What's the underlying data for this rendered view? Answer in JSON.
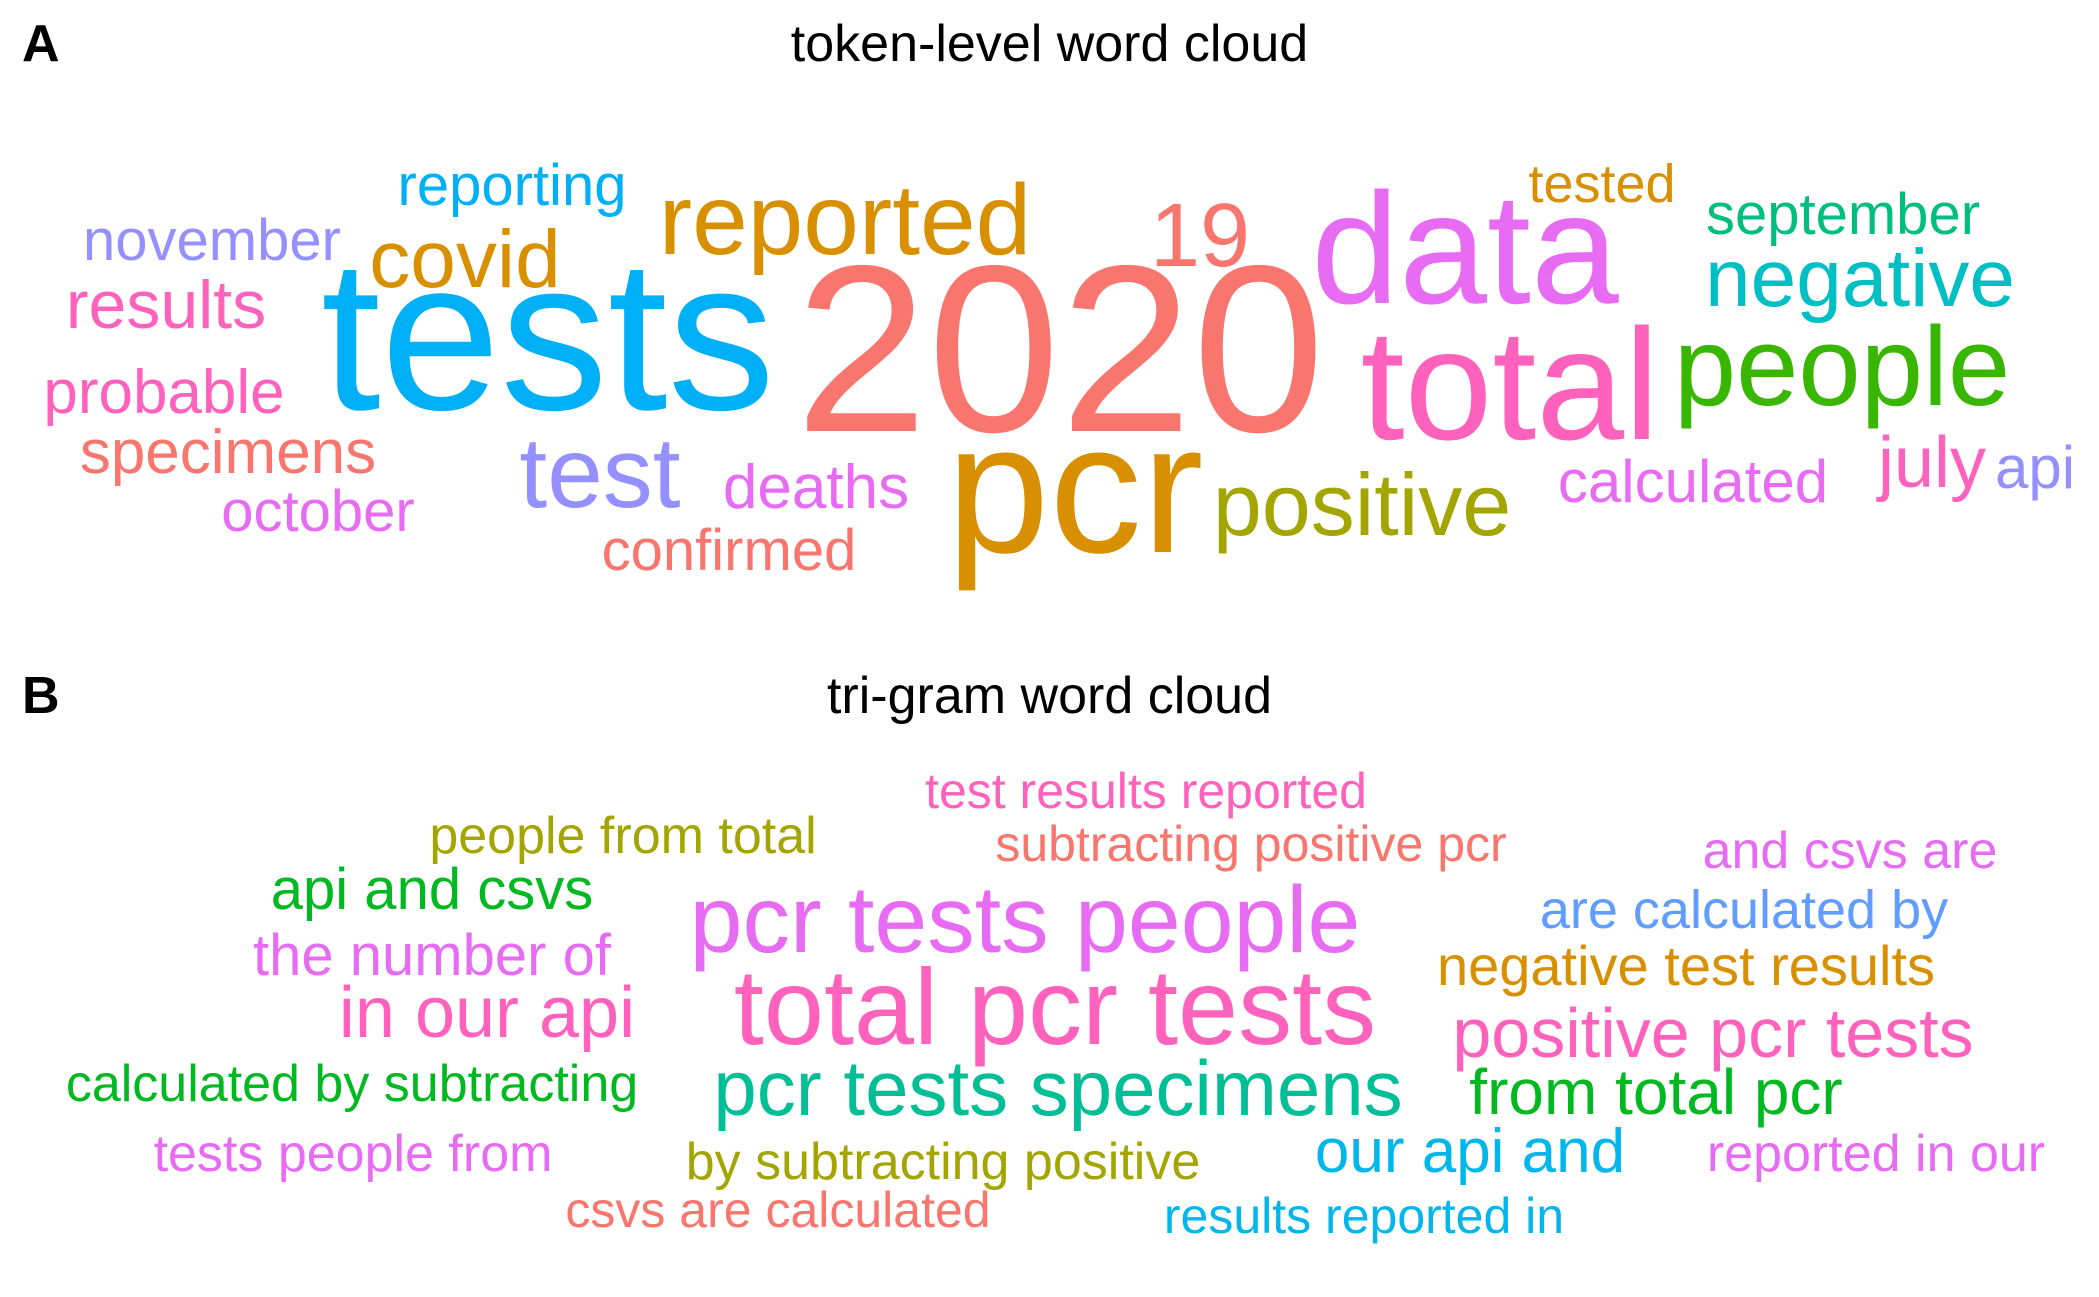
{
  "panels": [
    {
      "letter": "A",
      "title": "token-level word cloud",
      "words": [
        {
          "text": "2020",
          "color": "#F8766D"
        },
        {
          "text": "tests",
          "color": "#00B0F6"
        },
        {
          "text": "data",
          "color": "#E76BF3"
        },
        {
          "text": "total",
          "color": "#FF62BC"
        },
        {
          "text": "pcr",
          "color": "#D89000"
        },
        {
          "text": "people",
          "color": "#39B600"
        },
        {
          "text": "reported",
          "color": "#D89000"
        },
        {
          "text": "test",
          "color": "#9590FF"
        },
        {
          "text": "positive",
          "color": "#A3A500"
        },
        {
          "text": "negative",
          "color": "#00BFC4"
        },
        {
          "text": "19",
          "color": "#F8766D"
        },
        {
          "text": "covid",
          "color": "#D89000"
        },
        {
          "text": "results",
          "color": "#FF62BC"
        },
        {
          "text": "july",
          "color": "#FF62BC"
        },
        {
          "text": "specimens",
          "color": "#F8766D"
        },
        {
          "text": "probable",
          "color": "#FF62BC"
        },
        {
          "text": "september",
          "color": "#00BF7D"
        },
        {
          "text": "november",
          "color": "#9590FF"
        },
        {
          "text": "deaths",
          "color": "#E76BF3"
        },
        {
          "text": "calculated",
          "color": "#E76BF3"
        },
        {
          "text": "reporting",
          "color": "#00B0F6"
        },
        {
          "text": "october",
          "color": "#E76BF3"
        },
        {
          "text": "api",
          "color": "#9590FF"
        },
        {
          "text": "confirmed",
          "color": "#F8766D"
        },
        {
          "text": "tested",
          "color": "#D89000"
        }
      ]
    },
    {
      "letter": "B",
      "title": "tri-gram word cloud",
      "words": [
        {
          "text": "total pcr tests",
          "color": "#FF62BC"
        },
        {
          "text": "pcr tests people",
          "color": "#E76BF3"
        },
        {
          "text": "pcr tests specimens",
          "color": "#00BF96"
        },
        {
          "text": "positive pcr tests",
          "color": "#FF62BC"
        },
        {
          "text": "in our api",
          "color": "#FF62BC"
        },
        {
          "text": "from total pcr",
          "color": "#00B81F"
        },
        {
          "text": "our api and",
          "color": "#00B6EB"
        },
        {
          "text": "api and csvs",
          "color": "#00B81F"
        },
        {
          "text": "the number of",
          "color": "#E76BF3"
        },
        {
          "text": "negative test results",
          "color": "#D89000"
        },
        {
          "text": "are calculated by",
          "color": "#619CFF"
        },
        {
          "text": "and csvs are",
          "color": "#E76BF3"
        },
        {
          "text": "calculated by subtracting",
          "color": "#00B81F"
        },
        {
          "text": "tests people from",
          "color": "#E76BF3"
        },
        {
          "text": "by subtracting positive",
          "color": "#A3A500"
        },
        {
          "text": "reported in our",
          "color": "#E76BF3"
        },
        {
          "text": "people from total",
          "color": "#A3A500"
        },
        {
          "text": "subtracting positive pcr",
          "color": "#F8766D"
        },
        {
          "text": "test results reported",
          "color": "#FF62BC"
        },
        {
          "text": "csvs are calculated",
          "color": "#F8766D"
        },
        {
          "text": "results reported in",
          "color": "#00B6EB"
        }
      ]
    }
  ]
}
